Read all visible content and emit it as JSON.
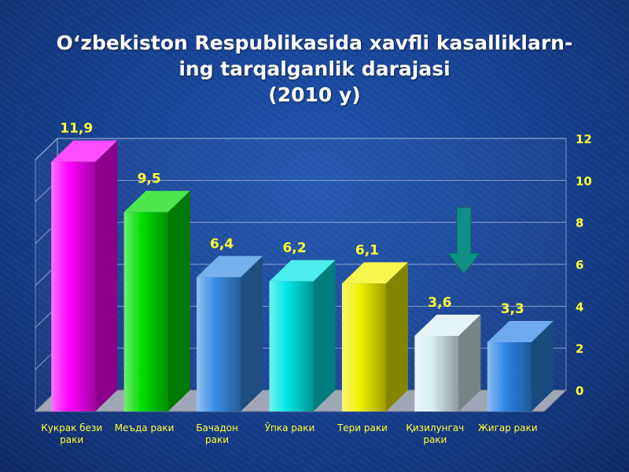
{
  "title": {
    "line1": "O‘zbekiston Respublikasida xavfli kasalliklarn-",
    "line2": "ing tarqalganlik darajasi",
    "line3": "(2010 y)"
  },
  "colors": {
    "value_label": "#ffff33",
    "axis_tick": "#ffff33",
    "category_label": "#ffff33",
    "arrow": "#0f8f86"
  },
  "chart_data": {
    "type": "bar",
    "title": "O‘zbekiston Respublikasida xavfli kasalliklarning tarqalganlik darajasi (2010 y)",
    "categories": [
      [
        "Кукрак бези",
        "раки"
      ],
      [
        "Меъда раки"
      ],
      [
        "Бачадон",
        "раки"
      ],
      [
        "Ўпка раки"
      ],
      [
        "Тери раки"
      ],
      [
        "Қизилунгач",
        "раки"
      ],
      [
        "Жигар раки"
      ]
    ],
    "values": [
      11.9,
      9.5,
      6.4,
      6.2,
      6.1,
      3.6,
      3.3
    ],
    "value_labels": [
      "11,9",
      "9,5",
      "6,4",
      "6,2",
      "6,1",
      "3,6",
      "3,3"
    ],
    "bar_colors": [
      "#ff00ff",
      "#00dd00",
      "#3b8fe6",
      "#00e5e5",
      "#f2f200",
      "#d8eef2",
      "#2e86e8"
    ],
    "ylim": [
      0,
      12
    ],
    "yticks": [
      "0",
      "2",
      "4",
      "6",
      "8",
      "10",
      "12"
    ],
    "y_axis_side": "right",
    "grid": true,
    "annotation": "down-arrow"
  }
}
